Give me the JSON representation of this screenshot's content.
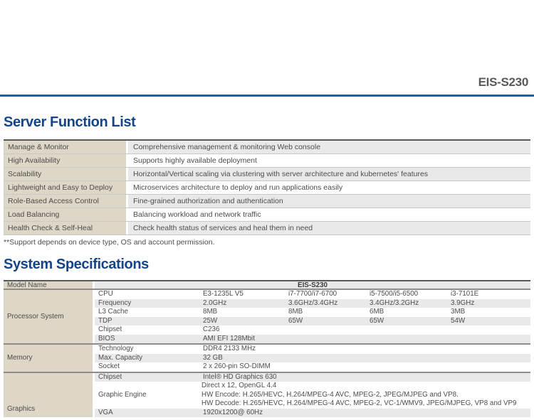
{
  "header": {
    "model": "EIS-S230"
  },
  "function_list": {
    "title": "Server Function List",
    "rows": [
      {
        "feature": "Manage & Monitor",
        "description": "Comprehensive management & monitoring Web console"
      },
      {
        "feature": "High Availability",
        "description": "Supports highly available deployment"
      },
      {
        "feature": "Scalability",
        "description": "Horizontal/Vertical scaling via clustering with server architecture and kubernetes' features"
      },
      {
        "feature": "Lightweight and Easy to Deploy",
        "description": "Microservices architecture to deploy and run applications easily"
      },
      {
        "feature": "Role-Based Access Control",
        "description": "Fine-grained authorization and authentication"
      },
      {
        "feature": "Load Balancing",
        "description": "Balancing workload and network traffic"
      },
      {
        "feature": "Health Check & Self-Heal",
        "description": "Check health status of services and heal them in need"
      }
    ],
    "footnote": "**Support depends on device type, OS and account permission."
  },
  "specs": {
    "title": "System Specifications",
    "model_row": {
      "label": "Model Name",
      "value": "EIS-S230"
    },
    "groups": [
      {
        "category": "Processor System",
        "rows": [
          {
            "attr": "CPU",
            "values": [
              "E3-1235L V5",
              "i7-7700/i7-6700",
              "i5-7500/i5-6500",
              "i3-7101E"
            ]
          },
          {
            "attr": "Frequency",
            "values": [
              "2.0GHz",
              "3.6GHz/3.4GHz",
              "3.4GHz/3.2GHz",
              "3.9GHz"
            ]
          },
          {
            "attr": "L3 Cache",
            "values": [
              "8MB",
              "8MB",
              "6MB",
              "3MB"
            ]
          },
          {
            "attr": "TDP",
            "values": [
              "25W",
              "65W",
              "65W",
              "54W"
            ]
          },
          {
            "attr": "Chipset",
            "value": "C236"
          },
          {
            "attr": "BIOS",
            "value": "AMI EFI 128Mbit"
          }
        ]
      },
      {
        "category": "Memory",
        "rows": [
          {
            "attr": "Technology",
            "value": "DDR4 2133 MHz"
          },
          {
            "attr": "Max. Capacity",
            "value": "32 GB"
          },
          {
            "attr": "Socket",
            "value": "2 x 260-pin SO-DIMM"
          }
        ]
      },
      {
        "category": "Graphics",
        "rows": [
          {
            "attr": "Chipset",
            "value": "Intel® HD Graphics 630"
          },
          {
            "attr": "Graphic Engine",
            "lines": [
              "Direct x 12, OpenGL 4.4",
              "HW Encode: H.265/HEVC, H.264/MPEG-4 AVC, MPEG-2, JPEG/MJPEG and VP8.",
              "HW Decode: H.265/HEVC, H.264/MPEG-4 AVC, MPEG-2, VC-1/WMV9, JPEG/MJPEG, VP8 and VP9"
            ]
          },
          {
            "attr": "VGA",
            "value": "1920x1200@ 60Hz"
          }
        ]
      }
    ]
  },
  "colors": {
    "heading_blue": "#154488",
    "rule_blue": "#1d5ea5",
    "beige": "#ded6c6",
    "band_gray": "#e9e9e9",
    "model_gray": "#58595b",
    "text_gray": "#4d4d4d"
  }
}
